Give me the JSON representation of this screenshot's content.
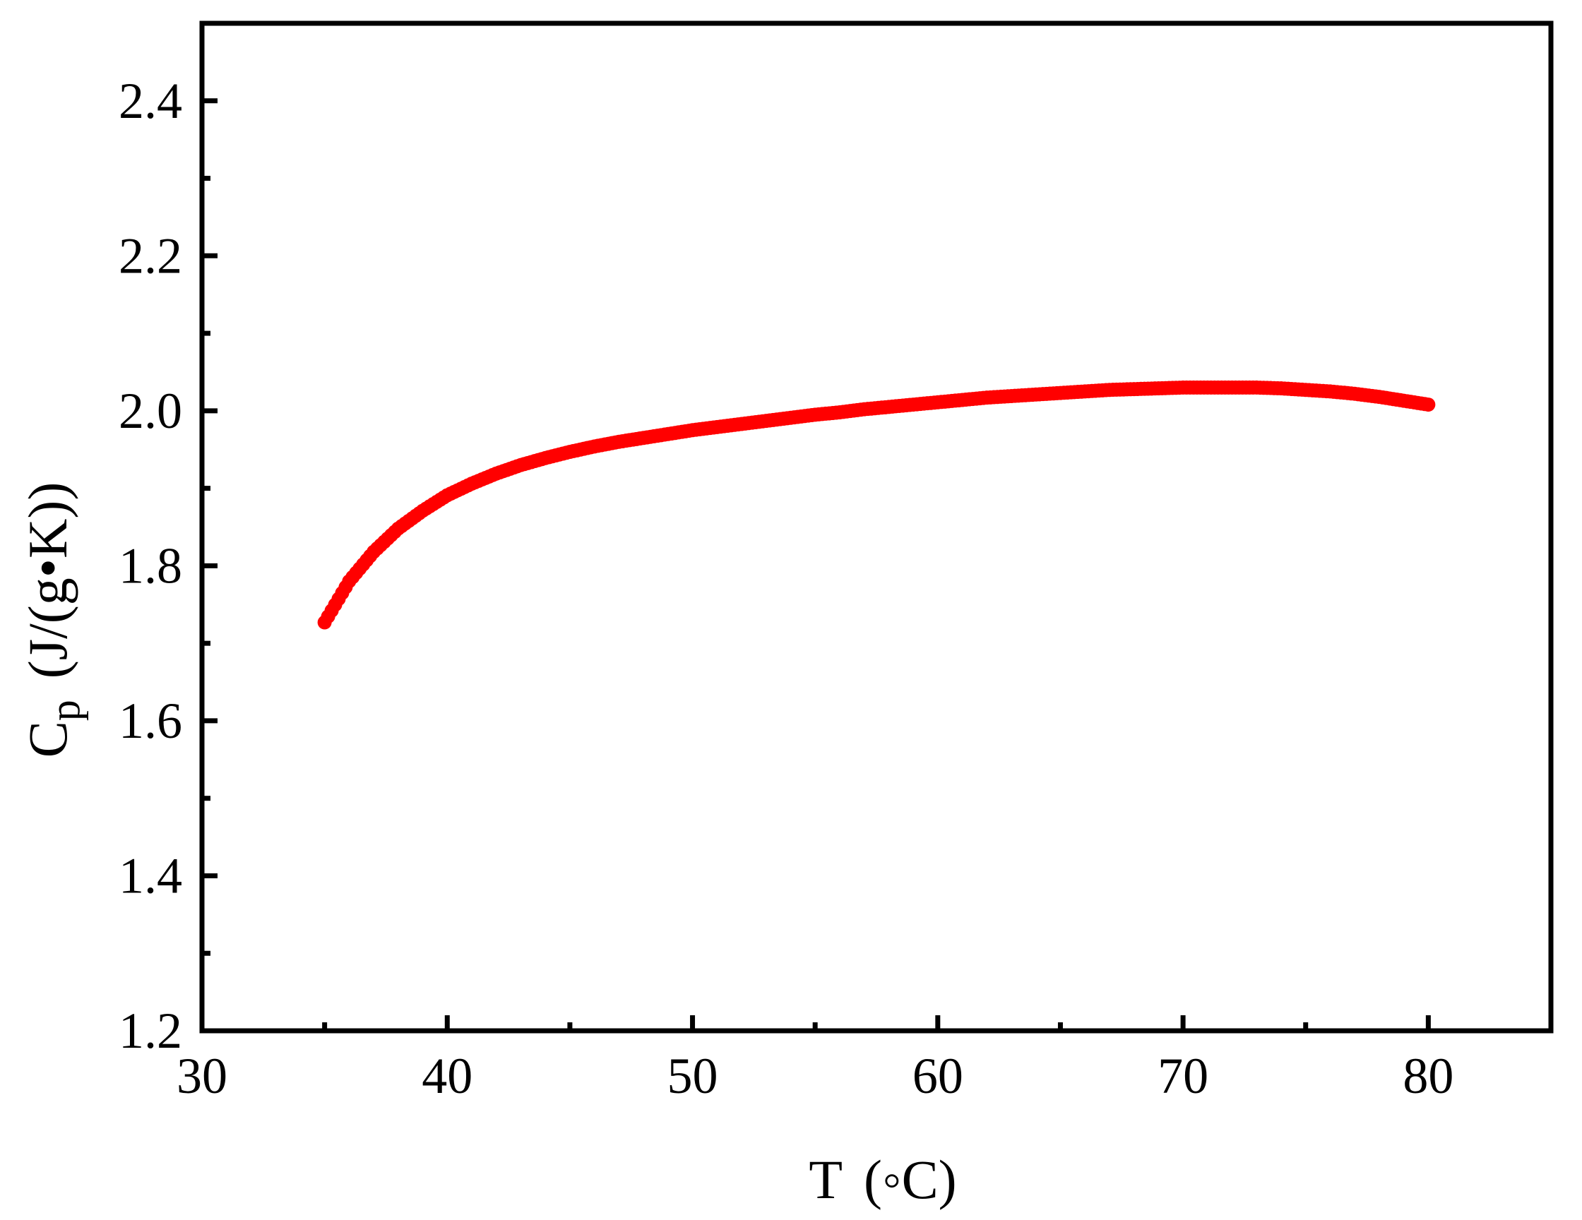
{
  "chart_data": {
    "type": "scatter",
    "title": "",
    "xlabel": {
      "symbol": "T",
      "unit": "(◦C)"
    },
    "ylabel": {
      "symbol": "C",
      "subscript": "p",
      "unit": "(J/(g•K))"
    },
    "xlim": [
      30,
      85
    ],
    "ylim": [
      1.2,
      2.5
    ],
    "xticks": [
      30,
      40,
      50,
      60,
      70,
      80
    ],
    "xtick_labels": [
      "30",
      "40",
      "50",
      "60",
      "70",
      "80"
    ],
    "yticks": [
      1.2,
      1.4,
      1.6,
      1.8,
      2.0,
      2.2,
      2.4
    ],
    "ytick_labels": [
      "1.2",
      "1.4",
      "1.6",
      "1.8",
      "2.0",
      "2.2",
      "2.4"
    ],
    "x_minor_step": 5,
    "y_minor_step": 0.1,
    "grid": false,
    "legend": "none",
    "series": [
      {
        "color": "#ff0000",
        "x": [
          35,
          36,
          37,
          38,
          39,
          40,
          41,
          42,
          43,
          44,
          45,
          46,
          47,
          48,
          49,
          50,
          51,
          52,
          53,
          54,
          55,
          56,
          57,
          58,
          59,
          60,
          61,
          62,
          63,
          64,
          65,
          66,
          67,
          68,
          69,
          70,
          71,
          72,
          73,
          74,
          75,
          76,
          77,
          78,
          79,
          80
        ],
        "y": [
          1.727,
          1.78,
          1.818,
          1.848,
          1.871,
          1.891,
          1.906,
          1.919,
          1.93,
          1.939,
          1.947,
          1.954,
          1.96,
          1.965,
          1.97,
          1.975,
          1.979,
          1.983,
          1.987,
          1.991,
          1.995,
          1.998,
          2.002,
          2.005,
          2.008,
          2.011,
          2.014,
          2.017,
          2.019,
          2.021,
          2.023,
          2.025,
          2.027,
          2.028,
          2.029,
          2.03,
          2.03,
          2.03,
          2.03,
          2.029,
          2.027,
          2.025,
          2.022,
          2.018,
          2.013,
          2.008
        ]
      }
    ]
  }
}
